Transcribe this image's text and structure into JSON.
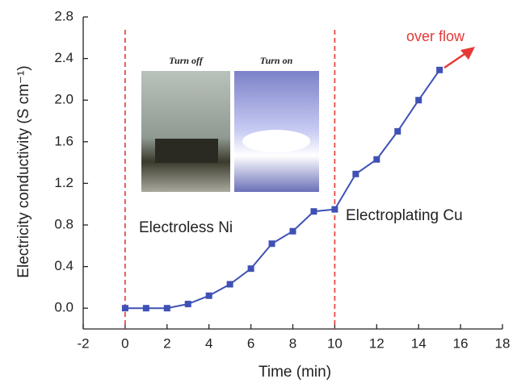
{
  "chart_data": {
    "type": "line",
    "xlabel": "Time (min)",
    "ylabel": "Electricity conductivity (S cm⁻¹)",
    "x": [
      0,
      1,
      2,
      3,
      4,
      5,
      6,
      7,
      8,
      9,
      10,
      11,
      12,
      13,
      14,
      15
    ],
    "series": [
      {
        "color": "#3f51b5",
        "values": [
          0.0,
          0.0,
          0.0,
          0.04,
          0.12,
          0.23,
          0.38,
          0.62,
          0.74,
          0.93,
          0.95,
          1.29,
          1.43,
          1.7,
          2.0,
          2.29
        ]
      }
    ],
    "xlim": [
      -2,
      18
    ],
    "xticks": [
      -2,
      0,
      2,
      4,
      6,
      8,
      10,
      12,
      14,
      16,
      18
    ],
    "ylim": [
      -0.2,
      2.8
    ],
    "yticks": [
      {
        "value": 0,
        "label": "0.0"
      },
      0.4,
      0.8,
      1.2,
      1.6,
      {
        "value": 2,
        "label": "2.0"
      },
      2.4,
      2.8
    ],
    "vlines": [
      0,
      10
    ],
    "vline_color": "#e53935",
    "annotations": [
      "Electroless Ni",
      "Electroplating Cu",
      "over flow"
    ],
    "inset_labels": [
      "Turn off",
      "Turn on"
    ]
  }
}
